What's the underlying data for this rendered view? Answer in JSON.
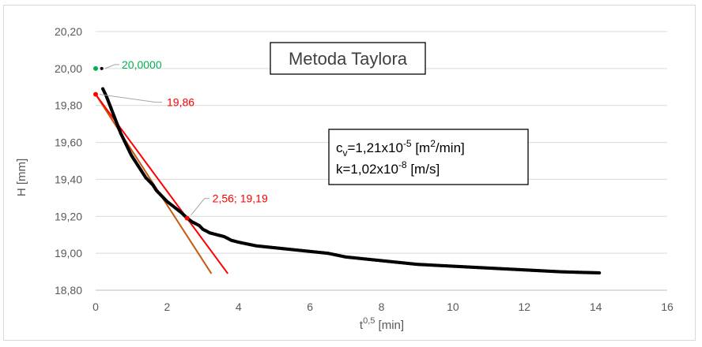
{
  "chart_data": {
    "type": "scatter",
    "title": "Metoda Taylora",
    "xlabel": {
      "base": "t",
      "sup": "0,5",
      "rest": " [min]"
    },
    "ylabel": "H [mm]",
    "xlim": [
      0,
      16
    ],
    "ylim": [
      18.8,
      20.2
    ],
    "xticks": [
      0,
      2,
      4,
      6,
      8,
      10,
      12,
      14,
      16
    ],
    "xtick_labels": [
      "0",
      "2",
      "4",
      "6",
      "8",
      "10",
      "12",
      "14",
      "16"
    ],
    "yticks": [
      18.8,
      19.0,
      19.2,
      19.4,
      19.6,
      19.8,
      20.0,
      20.2
    ],
    "ytick_labels": [
      "18,80",
      "19,00",
      "19,20",
      "19,40",
      "19,60",
      "19,80",
      "20,00",
      "20,20"
    ],
    "grid": {
      "horizontal": true,
      "vertical": false
    },
    "colors": {
      "data": "#000000",
      "tangent": "#c55a11",
      "secant": "#ff0000",
      "initial": "#00b050",
      "label_red": "#ff0000",
      "label_green": "#00b050",
      "grid": "#d9d9d9",
      "leader": "#a6a6a6"
    },
    "series": [
      {
        "role": "measurements",
        "points": [
          [
            0.17,
            20.0
          ],
          [
            0.2,
            19.89
          ],
          [
            0.25,
            19.87
          ],
          [
            0.3,
            19.85
          ],
          [
            0.4,
            19.8
          ],
          [
            0.5,
            19.75
          ],
          [
            0.6,
            19.7
          ],
          [
            0.7,
            19.65
          ],
          [
            0.8,
            19.61
          ],
          [
            0.9,
            19.57
          ],
          [
            1.0,
            19.53
          ],
          [
            1.1,
            19.5
          ],
          [
            1.2,
            19.47
          ],
          [
            1.3,
            19.44
          ],
          [
            1.4,
            19.41
          ],
          [
            1.5,
            19.39
          ],
          [
            1.6,
            19.37
          ],
          [
            1.7,
            19.34
          ],
          [
            1.8,
            19.32
          ],
          [
            1.9,
            19.3
          ],
          [
            2.0,
            19.28
          ],
          [
            2.2,
            19.25
          ],
          [
            2.4,
            19.22
          ],
          [
            2.56,
            19.19
          ],
          [
            2.7,
            19.17
          ],
          [
            2.9,
            19.15
          ],
          [
            3.0,
            19.13
          ],
          [
            3.2,
            19.11
          ],
          [
            3.4,
            19.1
          ],
          [
            3.6,
            19.09
          ],
          [
            3.8,
            19.07
          ],
          [
            4.0,
            19.06
          ],
          [
            4.5,
            19.04
          ],
          [
            5.0,
            19.03
          ],
          [
            5.5,
            19.02
          ],
          [
            6.0,
            19.01
          ],
          [
            6.5,
            19.0
          ],
          [
            7.0,
            18.98
          ],
          [
            7.5,
            18.97
          ],
          [
            8.0,
            18.96
          ],
          [
            8.5,
            18.95
          ],
          [
            9.0,
            18.94
          ],
          [
            9.5,
            18.935
          ],
          [
            10.0,
            18.93
          ],
          [
            10.5,
            18.925
          ],
          [
            11.0,
            18.92
          ],
          [
            11.5,
            18.915
          ],
          [
            12.0,
            18.91
          ],
          [
            12.5,
            18.905
          ],
          [
            13.0,
            18.9
          ],
          [
            13.5,
            18.897
          ],
          [
            14.1,
            18.894
          ]
        ]
      },
      {
        "role": "initial-tangent",
        "points": [
          [
            0,
            19.86
          ],
          [
            3.24,
            18.89
          ]
        ]
      },
      {
        "role": "taylor-line",
        "points": [
          [
            0,
            19.86
          ],
          [
            3.7,
            18.89
          ]
        ]
      },
      {
        "role": "initial-point",
        "points": [
          [
            0,
            20.0
          ]
        ]
      },
      {
        "role": "corrected-zero",
        "points": [
          [
            0,
            19.86
          ]
        ]
      },
      {
        "role": "t90-point",
        "points": [
          [
            2.56,
            19.19
          ]
        ]
      }
    ],
    "annotations": [
      {
        "text": "20,0000",
        "x": 0,
        "y": 20.0,
        "color": "#00b050"
      },
      {
        "text": "19,86",
        "x": 0,
        "y": 19.86,
        "color": "#ff0000"
      },
      {
        "text": "2,56; 19,19",
        "x": 2.56,
        "y": 19.19,
        "color": "#ff0000"
      }
    ],
    "parameters": {
      "cv": {
        "base": "c",
        "sub": "v",
        "value": "=1,21x10",
        "exp": "-5",
        "unit_pre": " [m",
        "unit_exp": "2",
        "unit_post": "/min]"
      },
      "k": {
        "value": "k=1,02x10",
        "exp": "-8",
        "unit": " [m/s]"
      }
    }
  }
}
